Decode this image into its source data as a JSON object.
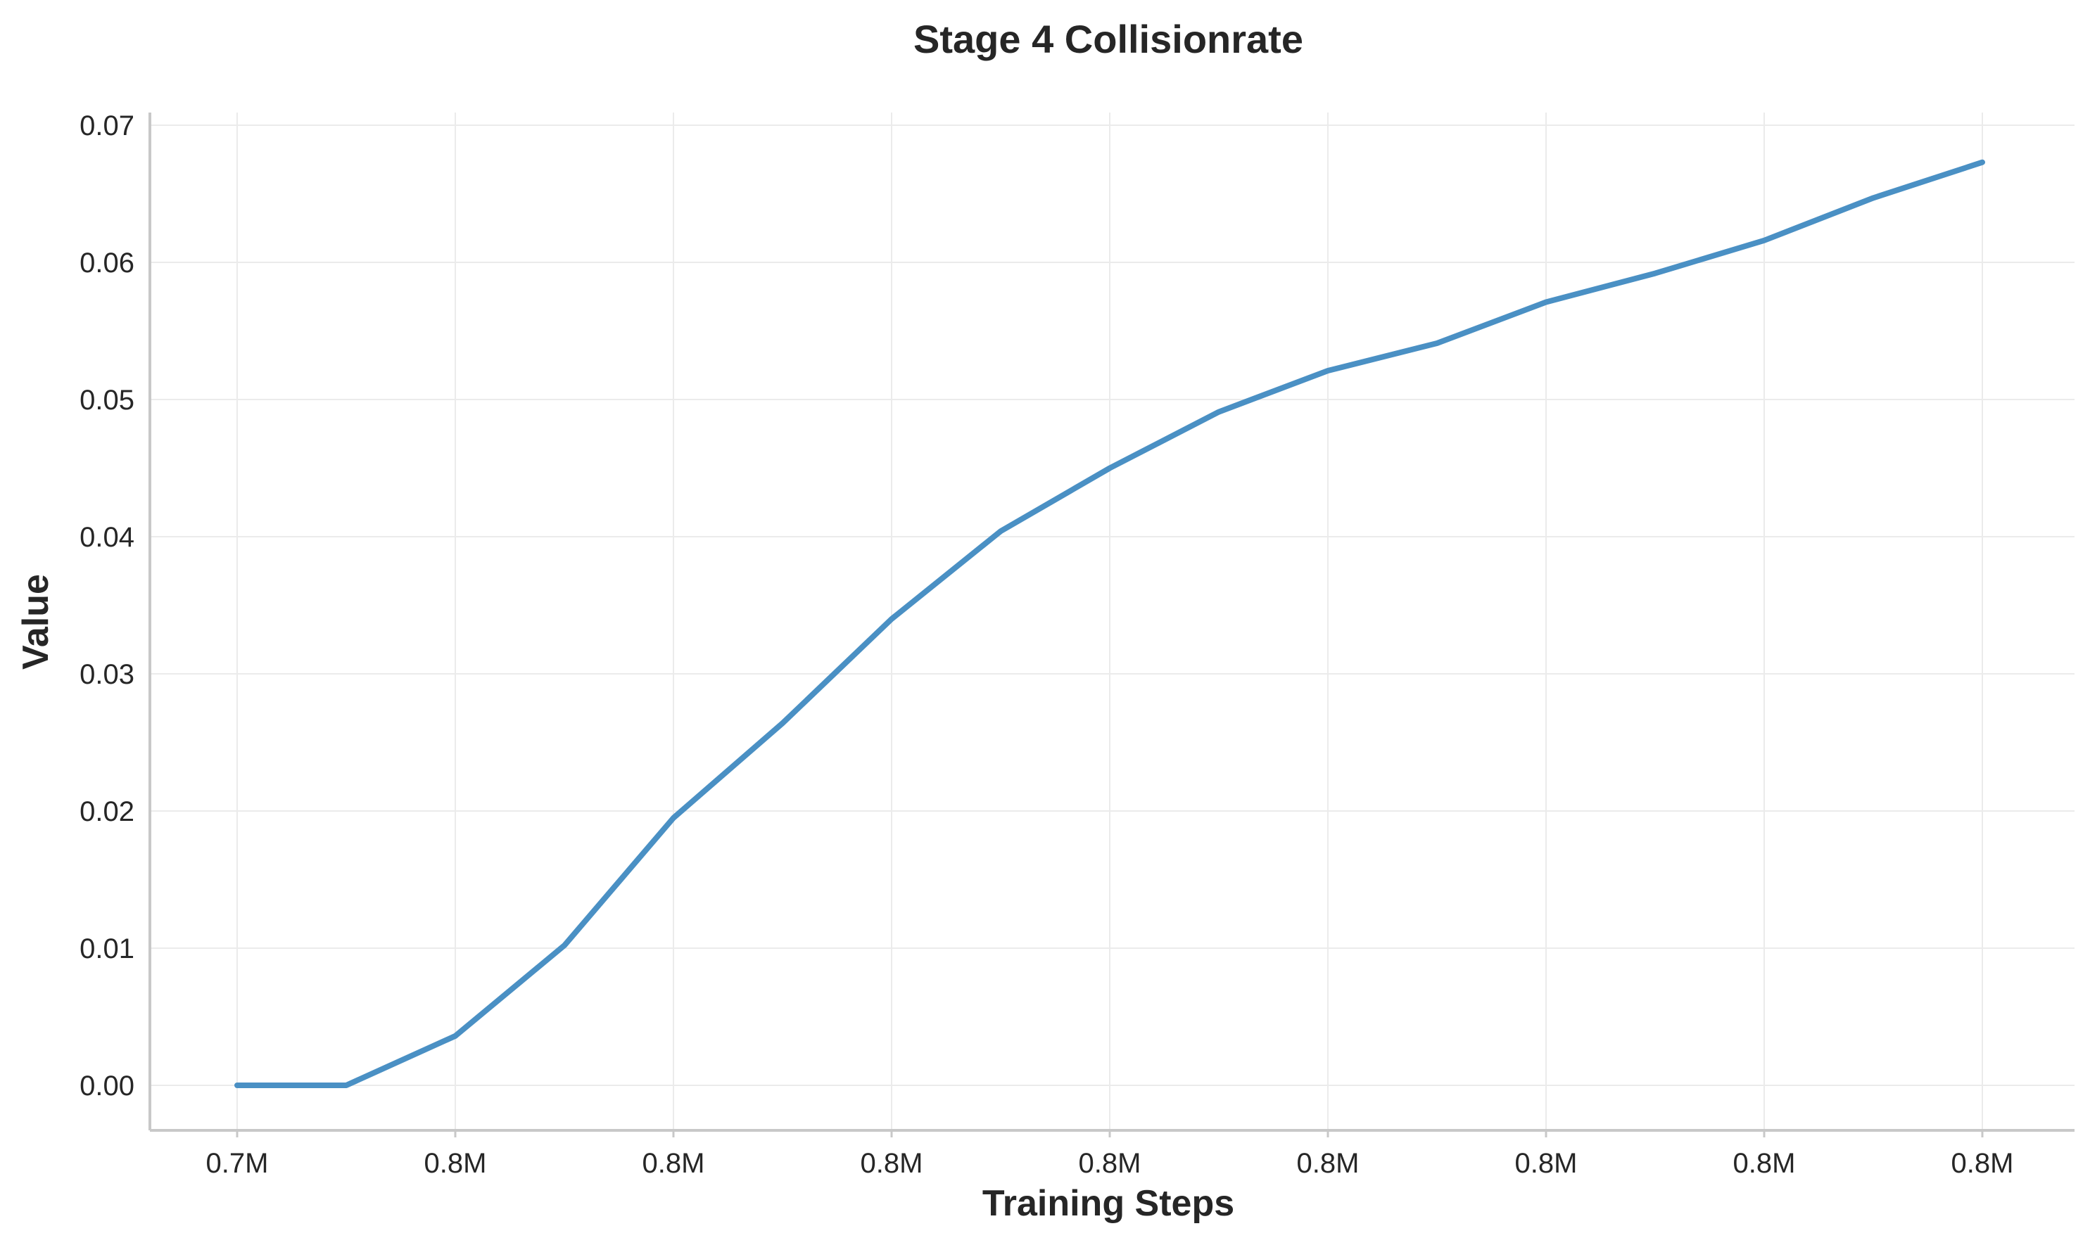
{
  "chart_data": {
    "type": "line",
    "title": "Stage 4 Collisionrate",
    "xlabel": "Training Steps",
    "ylabel": "Value",
    "x_tick_labels": [
      "0.7M",
      "0.8M",
      "0.8M",
      "0.8M",
      "0.8M",
      "0.8M",
      "0.8M",
      "0.8M",
      "0.8M"
    ],
    "y_tick_labels": [
      "0.00",
      "0.01",
      "0.02",
      "0.03",
      "0.04",
      "0.05",
      "0.06",
      "0.07"
    ],
    "y_ticks": [
      0.0,
      0.01,
      0.02,
      0.03,
      0.04,
      0.05,
      0.06,
      0.07
    ],
    "ylim": [
      -0.0033,
      0.0708
    ],
    "grid": true,
    "legend": "none",
    "series": [
      {
        "color": "#4a90c4",
        "values": [
          0.0,
          0.0,
          0.0036,
          0.0102,
          0.0195,
          0.0264,
          0.034,
          0.0404,
          0.045,
          0.0491,
          0.0521,
          0.0541,
          0.0571,
          0.0592,
          0.0616,
          0.0647,
          0.0673
        ]
      }
    ]
  }
}
